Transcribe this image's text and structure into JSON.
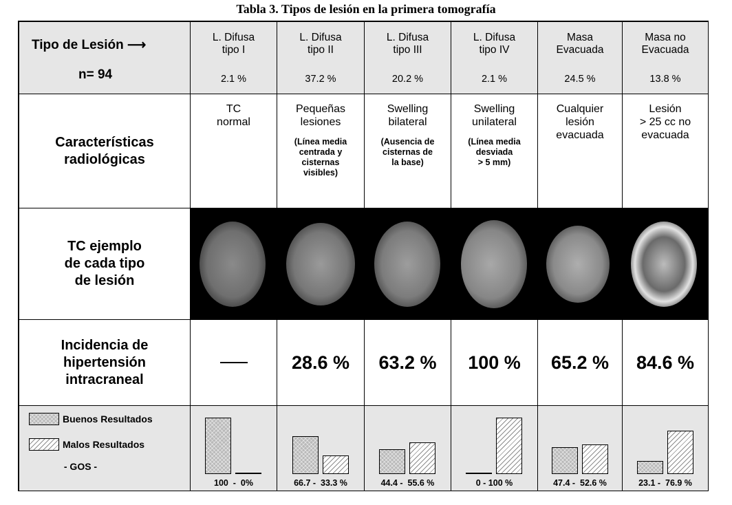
{
  "title": "Tabla 3. Tipos de lesión en la primera tomografía",
  "header": {
    "label": "Tipo de Lesión",
    "arrow": "⟶",
    "n": "n= 94"
  },
  "columns": [
    {
      "line1": "L. Difusa",
      "line2": "tipo I",
      "pct": "2.1 %",
      "char_main": "TC\nnormal",
      "char_sub": "",
      "incidence": "",
      "good": 100,
      "bad": 0,
      "gos_label": "100  -  0%"
    },
    {
      "line1": "L. Difusa",
      "line2": "tipo II",
      "pct": "37.2 %",
      "char_main": "Pequeñas\nlesiones",
      "char_sub": "(Línea media\ncentrada y\ncisternas\nvisibles)",
      "incidence": "28.6 %",
      "good": 66.7,
      "bad": 33.3,
      "gos_label": "66.7 -  33.3 %"
    },
    {
      "line1": "L. Difusa",
      "line2": "tipo III",
      "pct": "20.2 %",
      "char_main": "Swelling\nbilateral",
      "char_sub": "(Ausencia de\ncisternas de\nla base)",
      "incidence": "63.2 %",
      "good": 44.4,
      "bad": 55.6,
      "gos_label": "44.4 -  55.6 %"
    },
    {
      "line1": "L. Difusa",
      "line2": "tipo IV",
      "pct": "2.1 %",
      "char_main": "Swelling\nunilateral",
      "char_sub": "(Línea media\ndesviada\n> 5 mm)",
      "incidence": "100 %",
      "good": 0,
      "bad": 100,
      "gos_label": "0 - 100 %"
    },
    {
      "line1": "Masa",
      "line2": "Evacuada",
      "pct": "24.5 %",
      "char_main": "Cualquier\nlesión\nevacuada",
      "char_sub": "",
      "incidence": "65.2 %",
      "good": 47.4,
      "bad": 52.6,
      "gos_label": "47.4 -  52.6 %"
    },
    {
      "line1": "Masa no",
      "line2": "Evacuada",
      "pct": "13.8 %",
      "char_main": "Lesión\n> 25 cc no\nevacuada",
      "char_sub": "",
      "incidence": "84.6 %",
      "good": 23.1,
      "bad": 76.9,
      "gos_label": "23.1 -  76.9 %"
    }
  ],
  "rows": {
    "characteristics": "Características\nradiológicas",
    "example": "TC ejemplo\nde cada tipo\nde lesión",
    "incidence": "Incidencia de\nhipertensión\nintracraneal"
  },
  "legend": {
    "good": "Buenos Resultados",
    "bad": "Malos Resultados",
    "gos": "- GOS -"
  },
  "colors": {
    "header_bg": "#e6e6e6",
    "scan_bg": "#000000"
  }
}
